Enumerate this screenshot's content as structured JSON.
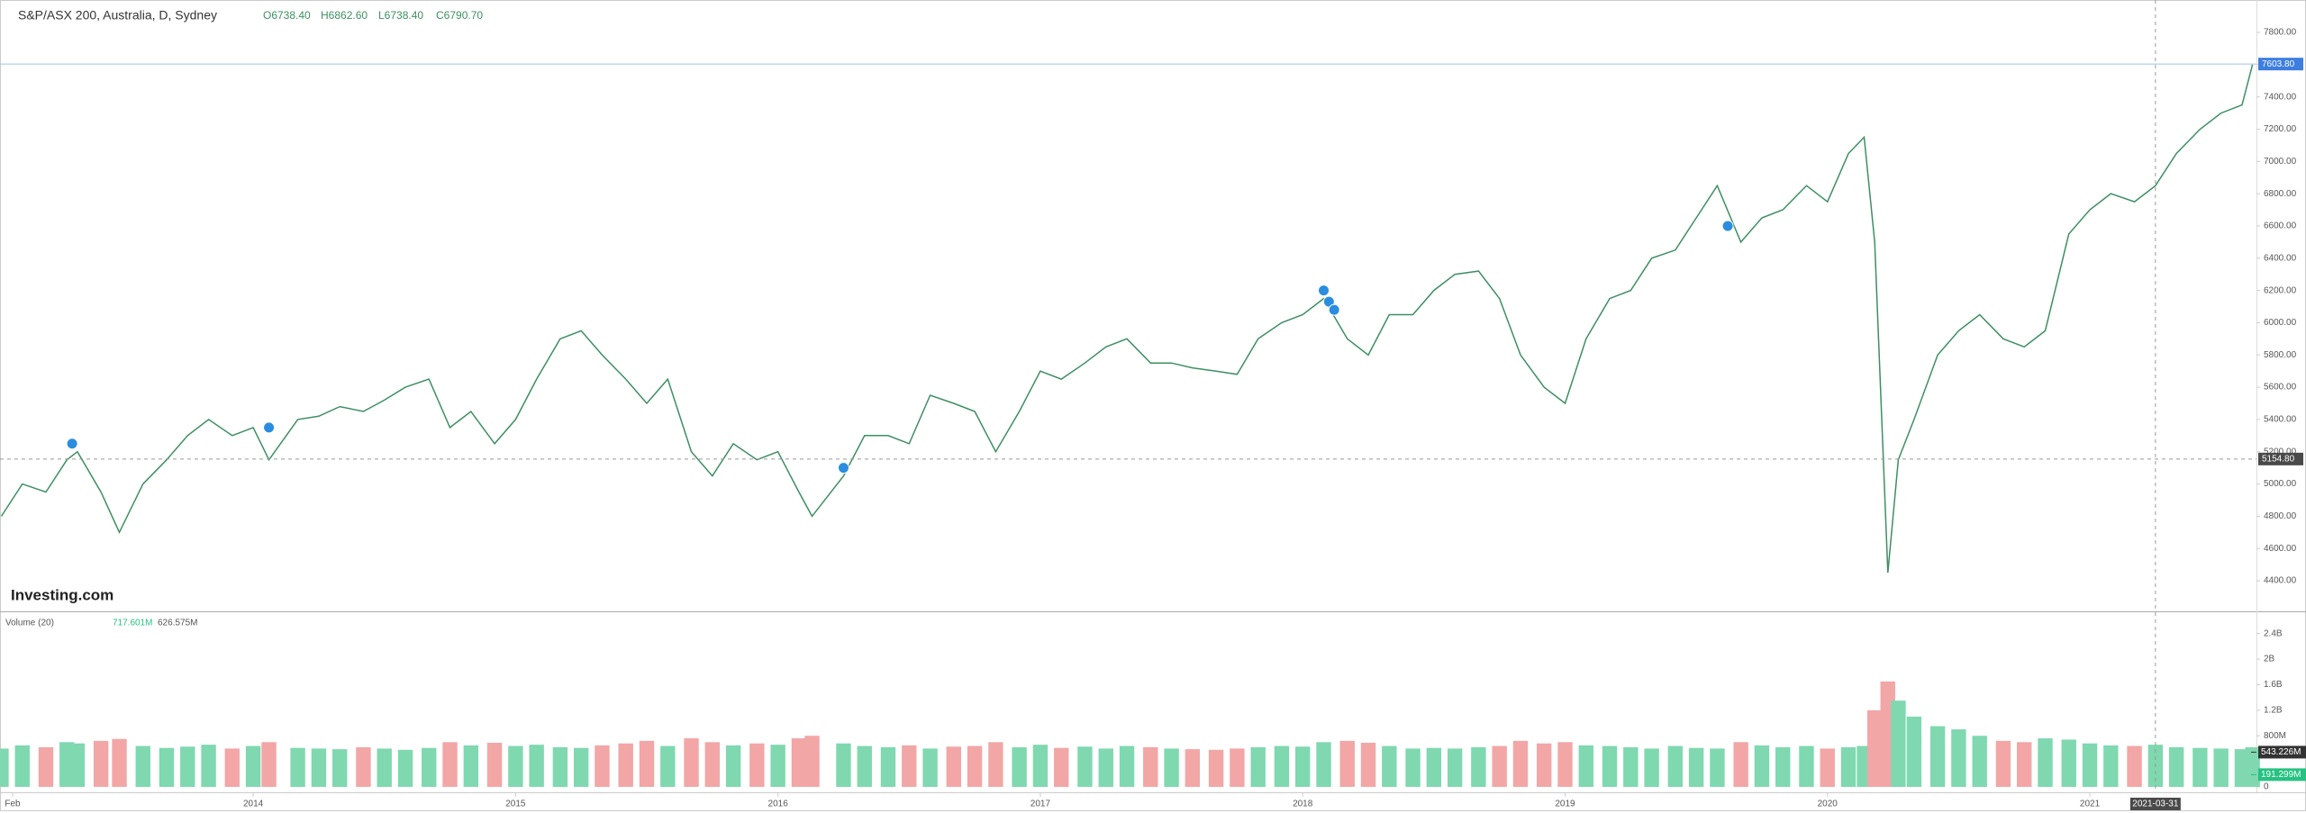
{
  "header": {
    "symbol": "S&P/ASX 200, Australia, D, Sydney",
    "open": "O6738.40",
    "high": "H6862.60",
    "low": "L6738.40",
    "close": "C6790.70",
    "watermark": "Investing.com"
  },
  "volume_header": {
    "title": "Volume (20)",
    "value": "717.601M",
    "average": "626.575M"
  },
  "chart_data": [
    {
      "type": "line",
      "name": "S&P/ASX 200",
      "color": "#3d8f62",
      "x": [
        2013.04,
        2013.12,
        2013.21,
        2013.29,
        2013.33,
        2013.42,
        2013.49,
        2013.58,
        2013.67,
        2013.75,
        2013.83,
        2013.92,
        2014.0,
        2014.06,
        2014.17,
        2014.25,
        2014.33,
        2014.42,
        2014.5,
        2014.58,
        2014.67,
        2014.75,
        2014.83,
        2014.92,
        2015.0,
        2015.08,
        2015.17,
        2015.25,
        2015.33,
        2015.42,
        2015.5,
        2015.58,
        2015.67,
        2015.75,
        2015.83,
        2015.92,
        2016.0,
        2016.08,
        2016.13,
        2016.25,
        2016.33,
        2016.42,
        2016.5,
        2016.58,
        2016.67,
        2016.75,
        2016.83,
        2016.92,
        2017.0,
        2017.08,
        2017.17,
        2017.25,
        2017.33,
        2017.42,
        2017.5,
        2017.58,
        2017.67,
        2017.75,
        2017.83,
        2017.92,
        2018.0,
        2018.08,
        2018.17,
        2018.25,
        2018.33,
        2018.42,
        2018.5,
        2018.58,
        2018.67,
        2018.75,
        2018.83,
        2018.92,
        2019.0,
        2019.08,
        2019.17,
        2019.25,
        2019.33,
        2019.42,
        2019.5,
        2019.58,
        2019.67,
        2019.75,
        2019.83,
        2019.92,
        2020.0,
        2020.08,
        2020.14,
        2020.18,
        2020.23,
        2020.27,
        2020.33,
        2020.42,
        2020.5,
        2020.58,
        2020.67,
        2020.75,
        2020.83,
        2020.92,
        2021.0,
        2021.08,
        2021.17,
        2021.25,
        2021.33,
        2021.42,
        2021.5,
        2021.58,
        2021.62
      ],
      "values": [
        4800,
        5000,
        4950,
        5150,
        5200,
        4950,
        4700,
        5000,
        5150,
        5300,
        5400,
        5300,
        5350,
        5150,
        5400,
        5420,
        5480,
        5450,
        5520,
        5600,
        5650,
        5350,
        5450,
        5250,
        5400,
        5650,
        5900,
        5950,
        5800,
        5650,
        5500,
        5650,
        5200,
        5050,
        5250,
        5150,
        5200,
        4950,
        4800,
        5050,
        5300,
        5300,
        5250,
        5550,
        5500,
        5450,
        5200,
        5450,
        5700,
        5650,
        5750,
        5850,
        5900,
        5750,
        5750,
        5720,
        5700,
        5680,
        5900,
        6000,
        6050,
        6150,
        5900,
        5800,
        6050,
        6050,
        6200,
        6300,
        6320,
        6150,
        5800,
        5600,
        5500,
        5900,
        6150,
        6200,
        6400,
        6450,
        6650,
        6850,
        6500,
        6650,
        6700,
        6850,
        6750,
        7050,
        7150,
        6500,
        4450,
        5150,
        5400,
        5800,
        5950,
        6050,
        5900,
        5850,
        5950,
        6550,
        6700,
        6800,
        6750,
        6850,
        7050,
        7200,
        7300,
        7350,
        7600
      ],
      "xlim": [
        2013.035,
        2021.635
      ],
      "xticks": [
        {
          "value": 2013.083,
          "label": "Feb"
        },
        2014,
        2015,
        2016,
        2017,
        2018,
        2019,
        2020,
        2021
      ],
      "ylim": [
        4216,
        8001
      ],
      "yticks": [
        {
          "value": 4400,
          "label": "4400.00"
        },
        {
          "value": 4600,
          "label": "4600.00"
        },
        {
          "value": 4800,
          "label": "4800.00"
        },
        {
          "value": 5000,
          "label": "5000.00"
        },
        {
          "value": 5200,
          "label": "5200.00"
        },
        {
          "value": 5400,
          "label": "5400.00"
        },
        {
          "value": 5600,
          "label": "5600.00"
        },
        {
          "value": 5800,
          "label": "5800.00"
        },
        {
          "value": 6000,
          "label": "6000.00"
        },
        {
          "value": 6200,
          "label": "6200.00"
        },
        {
          "value": 6400,
          "label": "6400.00"
        },
        {
          "value": 6600,
          "label": "6600.00"
        },
        {
          "value": 6800,
          "label": "6800.00"
        },
        {
          "value": 7000,
          "label": "7000.00"
        },
        {
          "value": 7200,
          "label": "7200.00"
        },
        {
          "value": 7400,
          "label": "7400.00"
        },
        {
          "value": 7600,
          "label": "7600.00"
        },
        {
          "value": 7800,
          "label": "7800.00"
        }
      ],
      "last_price": {
        "value": 7603.8,
        "label": "7603.80"
      },
      "crosshair_y": {
        "value": 5154.8,
        "label": "5154.80"
      },
      "crosshair_x": {
        "value": 2021.25,
        "label": "2021-03-31"
      },
      "events": [
        {
          "x": 2013.31,
          "y": 5250
        },
        {
          "x": 2014.06,
          "y": 5350
        },
        {
          "x": 2016.25,
          "y": 5100
        },
        {
          "x": 2018.08,
          "y": 6200
        },
        {
          "x": 2018.1,
          "y": 6130
        },
        {
          "x": 2018.12,
          "y": 6080
        },
        {
          "x": 2019.62,
          "y": 6600
        }
      ],
      "event_color": "#2a8de0"
    },
    {
      "type": "bar",
      "name": "Volume",
      "up_color": "#7fd8b0",
      "down_color": "#f2a6a6",
      "values": [
        600,
        650,
        620,
        700,
        680,
        720,
        750,
        640,
        610,
        630,
        660,
        600,
        640,
        700,
        610,
        600,
        590,
        620,
        600,
        580,
        610,
        700,
        650,
        690,
        640,
        660,
        620,
        610,
        650,
        680,
        720,
        640,
        760,
        700,
        650,
        680,
        660,
        760,
        800,
        680,
        640,
        620,
        650,
        600,
        630,
        640,
        700,
        620,
        660,
        610,
        630,
        600,
        640,
        620,
        600,
        590,
        580,
        600,
        620,
        640,
        630,
        700,
        720,
        690,
        640,
        600,
        610,
        600,
        620,
        640,
        720,
        680,
        700,
        650,
        640,
        620,
        600,
        640,
        610,
        600,
        700,
        650,
        620,
        640,
        600,
        620,
        640,
        1200,
        1650,
        1350,
        1100,
        950,
        900,
        800,
        720,
        700,
        760,
        740,
        680,
        650,
        640,
        660,
        620,
        610,
        600,
        590,
        620
      ],
      "ylim": [
        -85,
        2720
      ],
      "yticks": [
        0,
        {
          "value": 800,
          "label": "800M"
        },
        {
          "value": 1200,
          "label": "1.2B"
        },
        {
          "value": 1600,
          "label": "1.6B"
        },
        {
          "value": 2000,
          "label": "2B"
        },
        {
          "value": 2400,
          "label": "2.4B"
        }
      ],
      "markers": [
        {
          "value": 543.226,
          "label": "543.226M",
          "color": "#333333"
        },
        {
          "value": 191.299,
          "label": "191.299M",
          "color": "#26c281"
        }
      ]
    }
  ]
}
